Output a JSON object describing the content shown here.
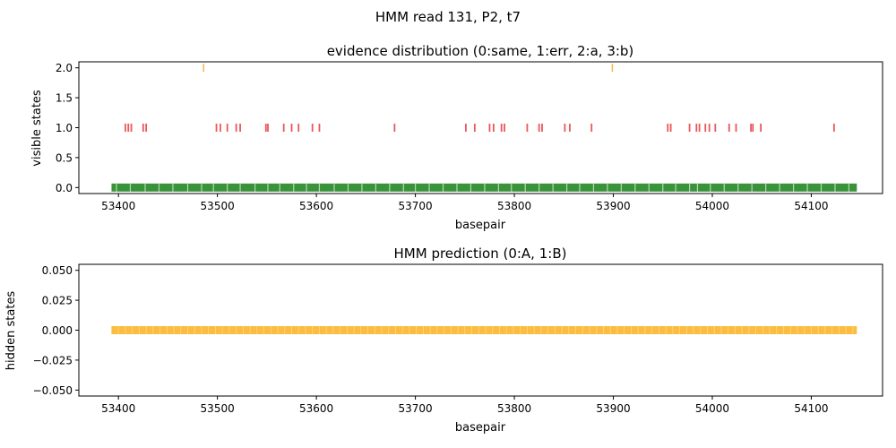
{
  "figure": {
    "suptitle": "HMM read 131, P2, t7"
  },
  "colors": {
    "same": "#3a923a",
    "err": "#e8585b",
    "a": "#f5b041",
    "prediction": "#fbbc3f"
  },
  "chart_data": [
    {
      "type": "scatter",
      "marker": "vertical-tick",
      "title": "evidence distribution (0:same, 1:err, 2:a, 3:b)",
      "xlabel": "basepair",
      "ylabel": "visible states",
      "xlim": [
        53360,
        54172
      ],
      "ylim": [
        -0.1,
        2.1
      ],
      "xticks": [
        53400,
        53500,
        53600,
        53700,
        53800,
        53900,
        54000,
        54100
      ],
      "yticks": [
        0.0,
        0.5,
        1.0,
        1.5,
        2.0
      ],
      "ytick_labels": [
        "0.0",
        "0.5",
        "1.0",
        "1.5",
        "2.0"
      ],
      "grid": false,
      "legend": "none",
      "x_range": [
        53393,
        54146
      ],
      "series": [
        {
          "y": 0,
          "fill_range": [
            53393,
            54146
          ],
          "x_gaps": [
            53398,
            53412,
            53427,
            53441,
            53455,
            53470,
            53484,
            53496,
            53510,
            53523,
            53538,
            53551,
            53563,
            53577,
            53590,
            53603,
            53618,
            53632,
            53646,
            53660,
            53674,
            53688,
            53700,
            53714,
            53728,
            53742,
            53756,
            53770,
            53784,
            53797,
            53811,
            53825,
            53839,
            53853,
            53866,
            53880,
            53894,
            53908,
            53922,
            53936,
            53950,
            53963,
            53977,
            53985,
            53998,
            54012,
            54026,
            54040,
            54054,
            54068,
            54082,
            54096,
            54110,
            54124,
            54138
          ]
        },
        {
          "y": 1,
          "x": [
            53407,
            53410,
            53413,
            53425,
            53428,
            53499,
            53503,
            53510,
            53519,
            53523,
            53549,
            53551,
            53567,
            53575,
            53582,
            53596,
            53603,
            53679,
            53751,
            53760,
            53775,
            53779,
            53787,
            53790,
            53813,
            53825,
            53828,
            53851,
            53856,
            53878,
            53955,
            53958,
            53977,
            53984,
            53987,
            53993,
            53997,
            54003,
            54017,
            54024,
            54039,
            54041,
            54049,
            54123
          ]
        },
        {
          "y": 2,
          "x": [
            53486,
            53899
          ]
        }
      ]
    },
    {
      "type": "scatter",
      "marker": "vertical-tick",
      "title": "HMM prediction (0:A, 1:B)",
      "xlabel": "basepair",
      "ylabel": "hidden states",
      "xlim": [
        53360,
        54172
      ],
      "ylim": [
        -0.055,
        0.055
      ],
      "xticks": [
        53400,
        53500,
        53600,
        53700,
        53800,
        53900,
        54000,
        54100
      ],
      "yticks": [
        -0.05,
        -0.025,
        0.0,
        0.025,
        0.05
      ],
      "ytick_labels": [
        "−0.050",
        "−0.025",
        "0.000",
        "0.025",
        "0.050"
      ],
      "grid": false,
      "legend": "none",
      "series": [
        {
          "y": 0,
          "fill_range": [
            53393,
            54146
          ]
        }
      ]
    }
  ]
}
